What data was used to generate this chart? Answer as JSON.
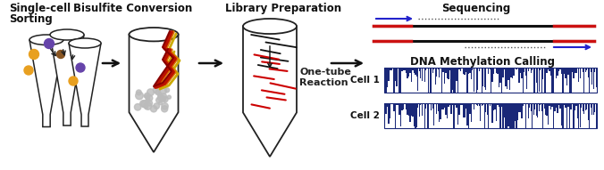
{
  "bg_color": "#ffffff",
  "labels": {
    "single_cell": "Single-cell   Bisulfite Conversion",
    "sorting": "Sorting",
    "library": "Library Preparation",
    "onetube": "One-tube\nReaction",
    "sequencing": "Sequencing",
    "methylation": "DNA Methylation Calling",
    "cell1": "Cell 1",
    "cell2": "Cell 2"
  },
  "colors": {
    "bg": "#ffffff",
    "tube_outline": "#222222",
    "arrow_color": "#111111",
    "dot_purple": "#6644aa",
    "dot_orange": "#e8a020",
    "dot_brown": "#885522",
    "seq_black": "#111111",
    "seq_red": "#cc1111",
    "seq_blue": "#2222cc",
    "seq_dot": "#555555",
    "cell_bar_fill": "#1a2878",
    "cell_bar_edge": "#1a2878",
    "bisulfite_red": "#bb1100",
    "bisulfite_orange": "#dd7700",
    "bisulfite_yellow": "#ccaa00",
    "bisulfite_dark": "#880000",
    "library_red": "#cc0000",
    "library_black": "#111111",
    "granule": "#bbbbbb"
  },
  "font_sizes": {
    "header": 8.5,
    "sublabel": 8.0,
    "cell_label": 7.5
  }
}
